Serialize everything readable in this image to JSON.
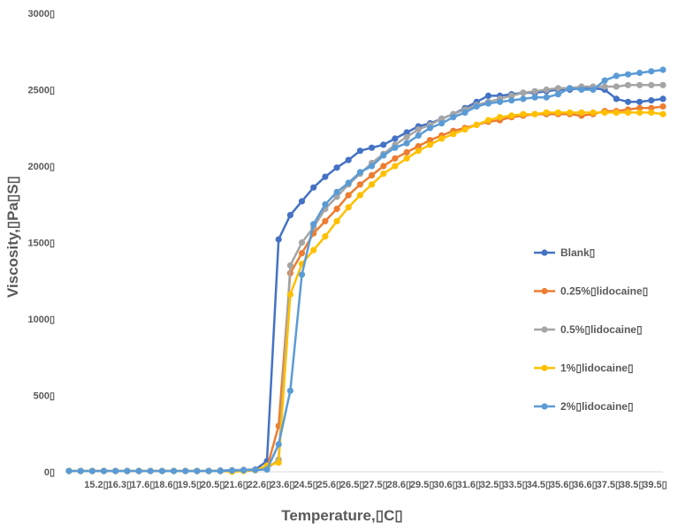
{
  "chart_data": {
    "type": "line",
    "xlabel": "Temperature,▯C▯",
    "ylabel": "Viscosity,▯Pa▯S▯",
    "ylim": [
      0,
      3000
    ],
    "yticks": [
      0,
      500,
      1000,
      1500,
      2000,
      2500,
      3000
    ],
    "ytick_labels": [
      "0▯",
      "500▯",
      "1000▯",
      "1500▯",
      "2000▯",
      "2500▯",
      "3000▯"
    ],
    "grid": false,
    "legend_position": "right",
    "x": [
      14.0,
      14.5,
      15.0,
      15.5,
      16.0,
      16.5,
      17.0,
      17.5,
      18.0,
      18.5,
      19.0,
      19.5,
      20.0,
      20.5,
      21.0,
      21.5,
      22.0,
      22.5,
      23.0,
      23.5,
      24.0,
      24.5,
      25.0,
      25.5,
      26.0,
      26.5,
      27.0,
      27.5,
      28.0,
      28.5,
      29.0,
      29.5,
      30.0,
      30.5,
      31.0,
      31.5,
      32.0,
      32.5,
      33.0,
      33.5,
      34.0,
      34.5,
      35.0,
      35.5,
      36.0,
      36.5,
      37.0,
      37.5,
      38.0,
      38.5,
      39.0,
      39.5
    ],
    "x_tick_labels": [
      "15.2▯",
      "16.3▯",
      "17.6▯",
      "18.6▯",
      "19.5▯",
      "20.5▯",
      "21.6▯",
      "22.6▯",
      "23.6▯",
      "24.5▯",
      "25.6▯",
      "26.5▯",
      "27.5▯",
      "28.6▯",
      "29.5▯",
      "30.6▯",
      "31.6▯",
      "32.5▯",
      "33.5▯",
      "34.5▯",
      "35.6▯",
      "36.6▯",
      "37.5▯",
      "38.5▯",
      "39.5▯"
    ],
    "series": [
      {
        "name": "Blank▯",
        "color": "#4472C4",
        "values": [
          5,
          5,
          5,
          5,
          5,
          5,
          5,
          5,
          5,
          5,
          5,
          5,
          5,
          8,
          10,
          12,
          15,
          70,
          1520,
          1680,
          1770,
          1860,
          1930,
          1990,
          2040,
          2100,
          2120,
          2140,
          2180,
          2220,
          2260,
          2280,
          2310,
          2340,
          2380,
          2420,
          2460,
          2460,
          2470,
          2480,
          2480,
          2490,
          2500,
          2500,
          2510,
          2510,
          2500,
          2440,
          2420,
          2420,
          2430,
          2440
        ]
      },
      {
        "name": "0.25%▯lidocaine▯",
        "color": "#ED7D31",
        "values": [
          5,
          5,
          5,
          5,
          5,
          5,
          5,
          5,
          5,
          5,
          5,
          5,
          5,
          5,
          8,
          10,
          12,
          25,
          300,
          1300,
          1430,
          1560,
          1640,
          1720,
          1810,
          1880,
          1940,
          2000,
          2050,
          2090,
          2130,
          2170,
          2200,
          2230,
          2250,
          2270,
          2290,
          2300,
          2320,
          2330,
          2340,
          2340,
          2340,
          2340,
          2330,
          2340,
          2360,
          2360,
          2370,
          2380,
          2380,
          2390
        ]
      },
      {
        "name": "0.5%▯lidocaine▯",
        "color": "#A5A5A5",
        "values": [
          5,
          5,
          5,
          5,
          5,
          5,
          5,
          5,
          5,
          5,
          5,
          5,
          5,
          5,
          8,
          10,
          12,
          20,
          80,
          1350,
          1500,
          1600,
          1720,
          1800,
          1880,
          1950,
          2020,
          2080,
          2140,
          2190,
          2240,
          2270,
          2310,
          2340,
          2370,
          2400,
          2420,
          2440,
          2460,
          2480,
          2490,
          2500,
          2510,
          2510,
          2520,
          2520,
          2520,
          2520,
          2530,
          2530,
          2530,
          2530
        ]
      },
      {
        "name": "1%▯lidocaine▯",
        "color": "#FFC000",
        "values": [
          5,
          5,
          5,
          5,
          5,
          5,
          5,
          5,
          5,
          5,
          5,
          5,
          5,
          5,
          0,
          5,
          10,
          40,
          60,
          1160,
          1360,
          1450,
          1540,
          1640,
          1730,
          1810,
          1880,
          1950,
          2000,
          2050,
          2100,
          2140,
          2180,
          2210,
          2240,
          2270,
          2300,
          2320,
          2330,
          2340,
          2340,
          2350,
          2350,
          2350,
          2350,
          2350,
          2350,
          2350,
          2350,
          2350,
          2350,
          2340
        ]
      },
      {
        "name": "2%▯lidocaine▯",
        "color": "#5B9BD5",
        "values": [
          5,
          5,
          5,
          5,
          5,
          5,
          5,
          5,
          5,
          5,
          5,
          5,
          5,
          5,
          8,
          10,
          12,
          15,
          180,
          530,
          1290,
          1620,
          1750,
          1830,
          1890,
          1960,
          2000,
          2070,
          2120,
          2150,
          2200,
          2250,
          2280,
          2320,
          2350,
          2390,
          2410,
          2420,
          2430,
          2440,
          2450,
          2450,
          2470,
          2510,
          2500,
          2500,
          2560,
          2590,
          2600,
          2610,
          2620,
          2630
        ]
      }
    ]
  }
}
